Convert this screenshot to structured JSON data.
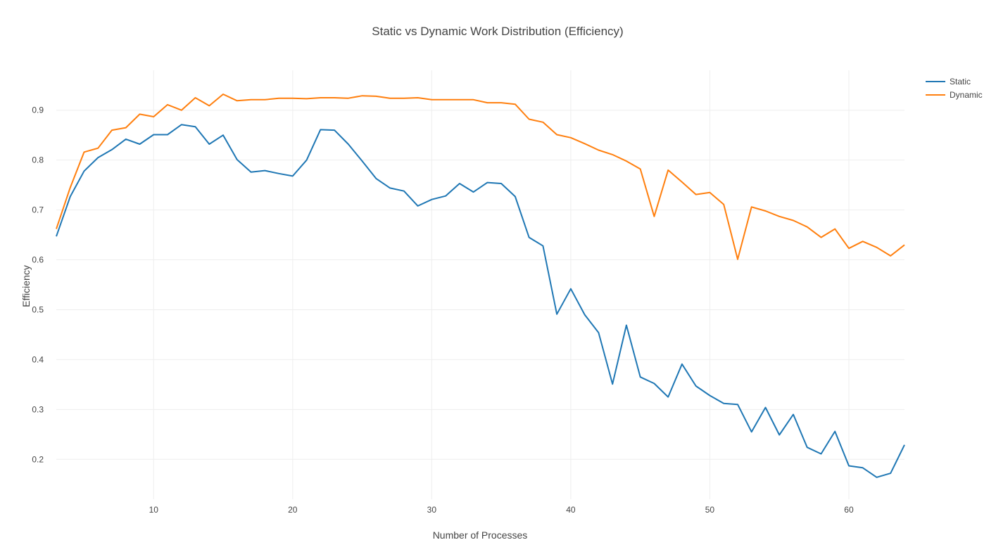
{
  "chart_data": {
    "type": "line",
    "title": "Static vs Dynamic Work Distribution (Efficiency)",
    "xlabel": "Number of Processes",
    "ylabel": "Efficiency",
    "xlim": [
      3,
      64
    ],
    "ylim": [
      0.12,
      0.98
    ],
    "xticks": [
      10,
      20,
      30,
      40,
      50,
      60
    ],
    "yticks": [
      0.2,
      0.3,
      0.4,
      0.5,
      0.6,
      0.7,
      0.8,
      0.9
    ],
    "grid": true,
    "legend_position": "top-right",
    "x": [
      3,
      4,
      5,
      6,
      7,
      8,
      9,
      10,
      11,
      12,
      13,
      14,
      15,
      16,
      17,
      18,
      19,
      20,
      21,
      22,
      23,
      24,
      25,
      26,
      27,
      28,
      29,
      30,
      31,
      32,
      33,
      34,
      35,
      36,
      37,
      38,
      39,
      40,
      41,
      42,
      43,
      44,
      45,
      46,
      47,
      48,
      49,
      50,
      51,
      52,
      53,
      54,
      55,
      56,
      57,
      58,
      59,
      60,
      61,
      62,
      63,
      64
    ],
    "series": [
      {
        "name": "Static",
        "color": "#1f77b4",
        "values": [
          0.647,
          0.727,
          0.778,
          0.805,
          0.821,
          0.842,
          0.832,
          0.851,
          0.851,
          0.871,
          0.867,
          0.832,
          0.85,
          0.801,
          0.776,
          0.779,
          0.773,
          0.768,
          0.8,
          0.861,
          0.86,
          0.832,
          0.798,
          0.763,
          0.744,
          0.738,
          0.708,
          0.721,
          0.728,
          0.753,
          0.736,
          0.755,
          0.753,
          0.727,
          0.645,
          0.628,
          0.491,
          0.542,
          0.49,
          0.454,
          0.351,
          0.469,
          0.365,
          0.352,
          0.325,
          0.391,
          0.347,
          0.328,
          0.312,
          0.31,
          0.255,
          0.304,
          0.249,
          0.29,
          0.224,
          0.211,
          0.256,
          0.187,
          0.183,
          0.164,
          0.172,
          0.229
        ]
      },
      {
        "name": "Dynamic",
        "color": "#ff7f0e",
        "values": [
          0.662,
          0.745,
          0.816,
          0.824,
          0.86,
          0.865,
          0.892,
          0.887,
          0.911,
          0.9,
          0.925,
          0.909,
          0.932,
          0.919,
          0.921,
          0.921,
          0.924,
          0.924,
          0.923,
          0.925,
          0.925,
          0.924,
          0.929,
          0.928,
          0.924,
          0.924,
          0.925,
          0.921,
          0.921,
          0.921,
          0.921,
          0.915,
          0.915,
          0.912,
          0.882,
          0.876,
          0.851,
          0.845,
          0.833,
          0.82,
          0.811,
          0.798,
          0.782,
          0.687,
          0.78,
          0.756,
          0.731,
          0.735,
          0.711,
          0.601,
          0.706,
          0.698,
          0.687,
          0.679,
          0.666,
          0.645,
          0.662,
          0.623,
          0.637,
          0.625,
          0.608,
          0.63
        ]
      }
    ]
  }
}
